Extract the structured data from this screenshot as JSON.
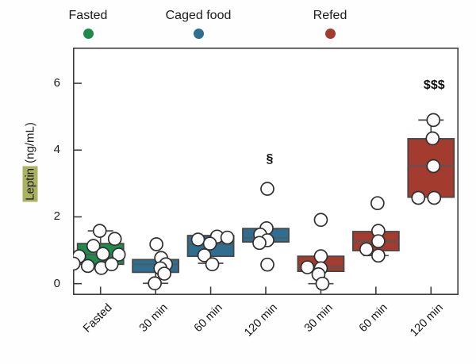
{
  "legend": {
    "items": [
      {
        "label": "Fasted",
        "color": "#1f8a4c"
      },
      {
        "label": "Caged food",
        "color": "#2f6e91"
      },
      {
        "label": "Refed",
        "color": "#a33b2e"
      }
    ]
  },
  "y_axis": {
    "label_highlighted": "Leptin",
    "label_unit": "(ng/mL)",
    "highlight_color": "#a9b261"
  },
  "chart_data": {
    "type": "box",
    "title": "",
    "xlabel": "",
    "ylabel": "Leptin (ng/mL)",
    "ylim": [
      -0.34,
      7.07
    ],
    "yticks": [
      0,
      2,
      4,
      6
    ],
    "grid": "off",
    "legend_position": "top",
    "categories": [
      "Fasted",
      "30 min",
      "60 min",
      "120 min",
      "30 min",
      "60 min",
      "120 min"
    ],
    "category_series": [
      "Fasted",
      "Caged food",
      "Caged food",
      "Caged food",
      "Refed",
      "Refed",
      "Refed"
    ],
    "groups": [
      {
        "category": "Fasted",
        "series": "Fasted",
        "color": "#1f8a4c",
        "box": {
          "q1": 0.58,
          "median": 0.87,
          "q3": 1.2,
          "whisker_low": null,
          "whisker_high": 1.58
        },
        "points": [
          [
            1.58,
            -1
          ],
          [
            1.34,
            18
          ],
          [
            1.13,
            -9
          ],
          [
            0.89,
            3
          ],
          [
            0.87,
            23
          ],
          [
            0.82,
            -27
          ],
          [
            0.6,
            -34
          ],
          [
            0.53,
            -16
          ],
          [
            0.47,
            1
          ],
          [
            0.58,
            14
          ]
        ]
      },
      {
        "category": "30 min",
        "series": "Caged food",
        "color": "#2f6e91",
        "box": {
          "q1": 0.34,
          "median": 0.58,
          "q3": 0.72,
          "whisker_low": 0.01,
          "whisker_high": null
        },
        "points": [
          [
            1.18,
            1
          ],
          [
            0.77,
            7
          ],
          [
            0.58,
            13
          ],
          [
            0.46,
            6
          ],
          [
            0.3,
            11
          ],
          [
            0.01,
            -1
          ]
        ]
      },
      {
        "category": "60 min",
        "series": "Caged food",
        "color": "#2f6e91",
        "box": {
          "q1": 0.82,
          "median": 1.18,
          "q3": 1.44,
          "whisker_low": 0.61,
          "whisker_high": null
        },
        "points": [
          [
            1.41,
            8
          ],
          [
            1.38,
            21
          ],
          [
            1.32,
            -16
          ],
          [
            1.2,
            -1
          ],
          [
            0.85,
            -8
          ],
          [
            0.58,
            2
          ]
        ]
      },
      {
        "category": "120 min",
        "series": "Caged food",
        "color": "#2f6e91",
        "box": {
          "q1": 1.25,
          "median": 1.37,
          "q3": 1.65,
          "whisker_low": null,
          "whisker_high": null
        },
        "points": [
          [
            2.84,
            2
          ],
          [
            1.66,
            1
          ],
          [
            1.47,
            -7
          ],
          [
            1.3,
            2
          ],
          [
            1.22,
            -8
          ],
          [
            0.57,
            2
          ]
        ],
        "annotation": {
          "text": "§",
          "value": 3.75,
          "dx": 5
        }
      },
      {
        "category": "30 min",
        "series": "Refed",
        "color": "#a33b2e",
        "box": {
          "q1": 0.37,
          "median": 0.51,
          "q3": 0.82,
          "whisker_low": 0.0,
          "whisker_high": null
        },
        "points": [
          [
            1.91,
            0
          ],
          [
            0.82,
            0
          ],
          [
            0.49,
            -17
          ],
          [
            0.46,
            0
          ],
          [
            0.28,
            -3
          ],
          [
            0.0,
            2
          ]
        ]
      },
      {
        "category": "60 min",
        "series": "Refed",
        "color": "#a33b2e",
        "box": {
          "q1": 0.99,
          "median": 1.27,
          "q3": 1.56,
          "whisker_low": 0.84,
          "whisker_high": null
        },
        "points": [
          [
            2.41,
            2
          ],
          [
            1.58,
            3
          ],
          [
            1.27,
            3
          ],
          [
            1.03,
            -12
          ],
          [
            0.84,
            3
          ]
        ]
      },
      {
        "category": "120 min",
        "series": "Refed",
        "color": "#a33b2e",
        "box": {
          "q1": 2.59,
          "median": 3.54,
          "q3": 4.34,
          "whisker_low": null,
          "whisker_high": 4.9
        },
        "points": [
          [
            4.9,
            3
          ],
          [
            4.35,
            2
          ],
          [
            3.52,
            3
          ],
          [
            2.57,
            -16
          ],
          [
            2.57,
            4
          ]
        ],
        "annotation": {
          "text": "$$$",
          "value": 5.95,
          "dx": 4
        }
      }
    ]
  }
}
